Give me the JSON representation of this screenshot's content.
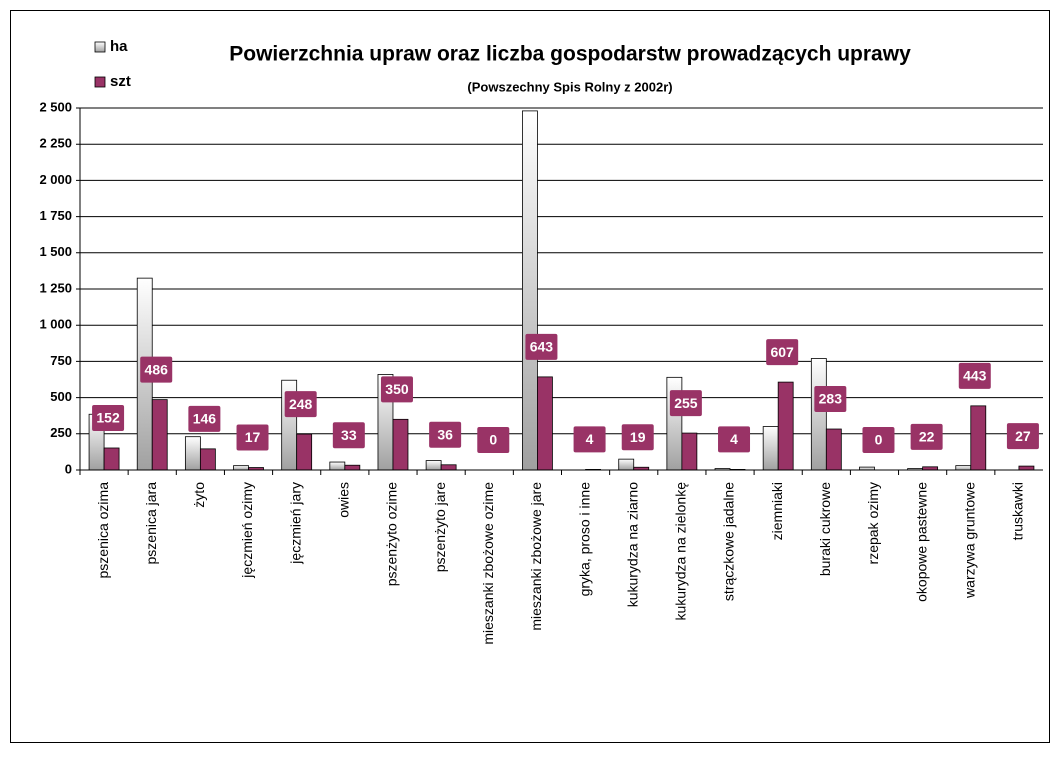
{
  "chart_data": {
    "type": "bar",
    "title": "Powierzchnia upraw oraz liczba gospodarstw prowadzących uprawy",
    "subtitle": "(Powszechny Spis Rolny z 2002r)",
    "categories": [
      "pszenica ozima",
      "pszenica jara",
      "żyto",
      "jęczmień ozimy",
      "jęczmień jary",
      "owies",
      "pszenżyto ozime",
      "pszenżyto jare",
      "mieszanki zbożowe ozime",
      "mieszanki zbożowe jare",
      "gryka, proso i inne",
      "kukurydza na ziarno",
      "kukurydza na zielonkę",
      "strączkowe jadalne",
      "ziemniaki",
      "buraki cukrowe",
      "rzepak ozimy",
      "okopowe pastewne",
      "warzywa gruntowe",
      "truskawki"
    ],
    "series": [
      {
        "name": "ha",
        "color": "#a0a0a0",
        "values": [
          385,
          1325,
          230,
          30,
          620,
          55,
          660,
          65,
          0,
          2480,
          0,
          75,
          640,
          10,
          300,
          770,
          20,
          10,
          30,
          0
        ]
      },
      {
        "name": "szt",
        "color": "#993366",
        "values": [
          152,
          486,
          146,
          17,
          248,
          33,
          350,
          36,
          0,
          643,
          4,
          19,
          255,
          4,
          607,
          283,
          0,
          22,
          443,
          27
        ]
      }
    ],
    "ylim": [
      0,
      2500
    ],
    "yticks": [
      0,
      250,
      500,
      750,
      {
        "value": 1000,
        "label": "1 000"
      },
      {
        "value": 1250,
        "label": "1 250"
      },
      {
        "value": 1500,
        "label": "1 500"
      },
      {
        "value": 1750,
        "label": "1 750"
      },
      {
        "value": 2000,
        "label": "2 000"
      },
      {
        "value": 2250,
        "label": "2 250"
      },
      {
        "value": 2500,
        "label": "2 500"
      }
    ],
    "grid": true,
    "legend": "top-left"
  }
}
